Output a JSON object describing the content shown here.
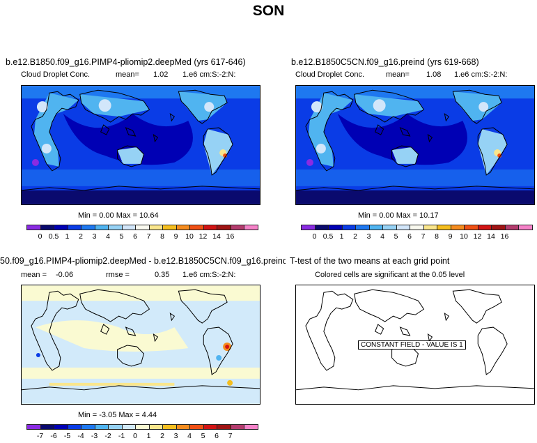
{
  "title": "SON",
  "panels": [
    {
      "title": "b.e12.B1850.f09_g16.PIMP4-pliomip2.deepMed (yrs 617-646)",
      "var_label": "Cloud Droplet Conc.",
      "mean_label": "mean=",
      "mean_value": "1.02",
      "units": "1.e6 cm:S:-2:N:",
      "minmax": "Min =   0.00 Max =   10.64"
    },
    {
      "title": "b.e12.B1850C5CN.f09_g16.preind (yrs 619-668)",
      "var_label": "Cloud Droplet Conc.",
      "mean_label": "mean=",
      "mean_value": "1.08",
      "units": "1.e6 cm:S:-2:N:",
      "minmax": "Min =   0.00 Max =   10.17"
    },
    {
      "title": "50.f09_g16.PIMP4-pliomip2.deepMed - b.e12.B1850C5CN.f09_g16.preind",
      "mean_label": "mean =",
      "mean_value": "-0.06",
      "rmse_label": "rmse =",
      "rmse_value": "0.35",
      "units": "1.e6 cm:S:-2:N:",
      "minmax": "Min =  -3.05 Max =   4.44"
    },
    {
      "title": "T-test of the two means at each grid point",
      "subtitle": "Colored cells are significant at the 0.05 level",
      "note": "CONSTANT FIELD - VALUE IS 1"
    }
  ],
  "colorbars": {
    "absolute": {
      "labels": [
        "0",
        "0.5",
        "1",
        "2",
        "3",
        "4",
        "5",
        "6",
        "7",
        "8",
        "9",
        "10",
        "12",
        "14",
        "16"
      ],
      "colors": [
        "#8a2be2",
        "#0a0a6e",
        "#0000b4",
        "#0a3ce6",
        "#1e78f0",
        "#50b4f0",
        "#96d2f5",
        "#d2e6fa",
        "#fafaf0",
        "#fae68c",
        "#f5be1e",
        "#f58c1e",
        "#f05014",
        "#d21414",
        "#a01414",
        "#b43c6e",
        "#f582c8"
      ]
    },
    "difference": {
      "labels": [
        "-7",
        "-6",
        "-5",
        "-4",
        "-3",
        "-2",
        "-1",
        "0",
        "1",
        "2",
        "3",
        "4",
        "5",
        "6",
        "7"
      ],
      "colors": [
        "#8a2be2",
        "#0a0a6e",
        "#0000b4",
        "#0a3ce6",
        "#1e78f0",
        "#50b4f0",
        "#96d2f5",
        "#d2eafa",
        "#fafad2",
        "#fae68c",
        "#f5be1e",
        "#f58c1e",
        "#f05014",
        "#d21414",
        "#a01414",
        "#b43c6e",
        "#f582c8"
      ]
    }
  },
  "chart_data": [
    {
      "type": "heatmap",
      "title": "b.e12.B1850.f09_g16.PIMP4-pliomip2.deepMed (yrs 617-646)",
      "variable": "Cloud Droplet Conc.",
      "units": "1.e6 cm:S:-2:N:",
      "mean": 1.02,
      "min": 0.0,
      "max": 10.64,
      "levels": [
        0,
        0.5,
        1,
        2,
        3,
        4,
        5,
        6,
        7,
        8,
        9,
        10,
        12,
        14,
        16
      ]
    },
    {
      "type": "heatmap",
      "title": "b.e12.B1850C5CN.f09_g16.preind (yrs 619-668)",
      "variable": "Cloud Droplet Conc.",
      "units": "1.e6 cm:S:-2:N:",
      "mean": 1.08,
      "min": 0.0,
      "max": 10.17,
      "levels": [
        0,
        0.5,
        1,
        2,
        3,
        4,
        5,
        6,
        7,
        8,
        9,
        10,
        12,
        14,
        16
      ]
    },
    {
      "type": "heatmap",
      "title": "50.f09_g16.PIMP4-pliomip2.deepMed - b.e12.B1850C5CN.f09_g16.preind",
      "units": "1.e6 cm:S:-2:N:",
      "mean": -0.06,
      "rmse": 0.35,
      "min": -3.05,
      "max": 4.44,
      "levels": [
        -7,
        -6,
        -5,
        -4,
        -3,
        -2,
        -1,
        0,
        1,
        2,
        3,
        4,
        5,
        6,
        7
      ]
    },
    {
      "type": "heatmap",
      "title": "T-test of the two means at each grid point",
      "subtitle": "Colored cells are significant at the 0.05 level",
      "annotation": "CONSTANT FIELD - VALUE IS 1"
    }
  ]
}
